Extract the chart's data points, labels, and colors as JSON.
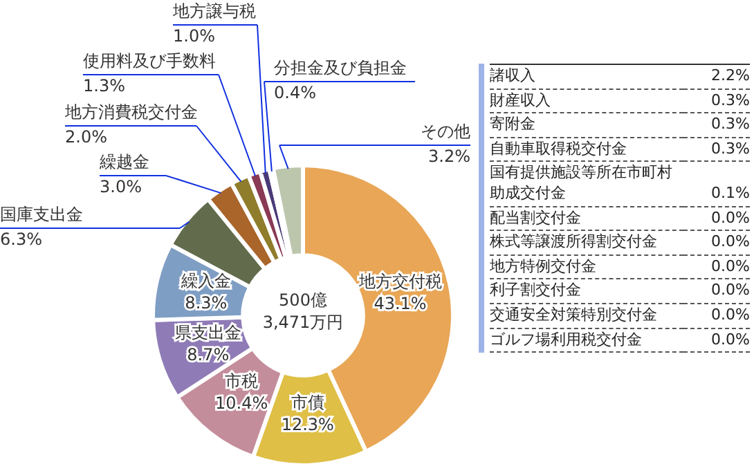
{
  "chart_data": {
    "type": "donut",
    "categories": [
      "地方交付税",
      "市債",
      "市税",
      "県支出金",
      "繰入金",
      "国庫支出金",
      "繰越金",
      "地方消費税交付金",
      "使用料及び手数料",
      "地方譲与税",
      "分担金及び負担金",
      "その他"
    ],
    "values": [
      43.1,
      12.3,
      10.4,
      8.7,
      8.3,
      6.3,
      3.0,
      2.0,
      1.3,
      1.0,
      0.4,
      3.2
    ],
    "value_labels": [
      "43.1%",
      "12.3%",
      "10.4%",
      "8.7%",
      "8.3%",
      "6.3%",
      "3.0%",
      "2.0%",
      "1.3%",
      "1.0%",
      "0.4%",
      "3.2%"
    ],
    "colors": [
      "#e8a656",
      "#dfbf45",
      "#c48d9c",
      "#8f7bb6",
      "#7f9ec4",
      "#626c4c",
      "#a9652a",
      "#8f7d2c",
      "#8a3a55",
      "#4a3a78",
      "#7090c0",
      "#bcc6ad"
    ],
    "legend": false,
    "annotations": [
      "500億\n3,471万円",
      "諸収入 2.2%",
      "財産収入 0.3%",
      "寄附金 0.3%",
      "自動車取得税交付金 0.3%",
      "国有提供施設等所在市町村助成交付金 0.1%",
      "配当割交付金 0.0%",
      "株式等譲渡所得割交付金 0.0%",
      "地方特例交付金 0.0%",
      "利子割交付金 0.0%",
      "交通安全対策特別交付金 0.0%",
      "ゴルフ場利用税交付金 0.0%"
    ]
  }
}
